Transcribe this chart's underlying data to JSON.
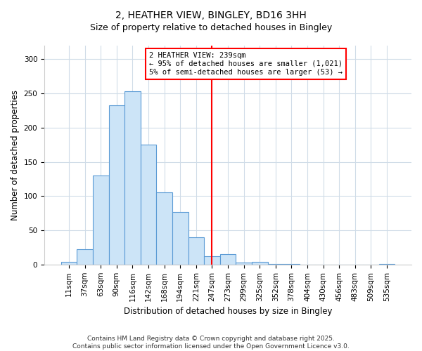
{
  "title": "2, HEATHER VIEW, BINGLEY, BD16 3HH",
  "subtitle": "Size of property relative to detached houses in Bingley",
  "xlabel": "Distribution of detached houses by size in Bingley",
  "ylabel": "Number of detached properties",
  "bar_labels": [
    "11sqm",
    "37sqm",
    "63sqm",
    "90sqm",
    "116sqm",
    "142sqm",
    "168sqm",
    "194sqm",
    "221sqm",
    "247sqm",
    "273sqm",
    "299sqm",
    "325sqm",
    "352sqm",
    "378sqm",
    "404sqm",
    "430sqm",
    "456sqm",
    "483sqm",
    "509sqm",
    "535sqm"
  ],
  "bar_values": [
    4,
    22,
    130,
    233,
    253,
    175,
    106,
    77,
    40,
    12,
    15,
    3,
    4,
    1,
    1,
    0,
    0,
    0,
    0,
    0,
    1
  ],
  "bar_color": "#cce4f7",
  "bar_edge_color": "#5b9bd5",
  "vline_x": 9.0,
  "vline_color": "red",
  "annotation_text": "2 HEATHER VIEW: 239sqm\n← 95% of detached houses are smaller (1,021)\n5% of semi-detached houses are larger (53) →",
  "ylim": [
    0,
    320
  ],
  "yticks": [
    0,
    50,
    100,
    150,
    200,
    250,
    300
  ],
  "background_color": "#ffffff",
  "grid_color": "#d0dce8",
  "footer_line1": "Contains HM Land Registry data © Crown copyright and database right 2025.",
  "footer_line2": "Contains public sector information licensed under the Open Government Licence v3.0.",
  "title_fontsize": 10,
  "subtitle_fontsize": 9,
  "axis_label_fontsize": 8.5,
  "tick_fontsize": 7.5,
  "footer_fontsize": 6.5
}
